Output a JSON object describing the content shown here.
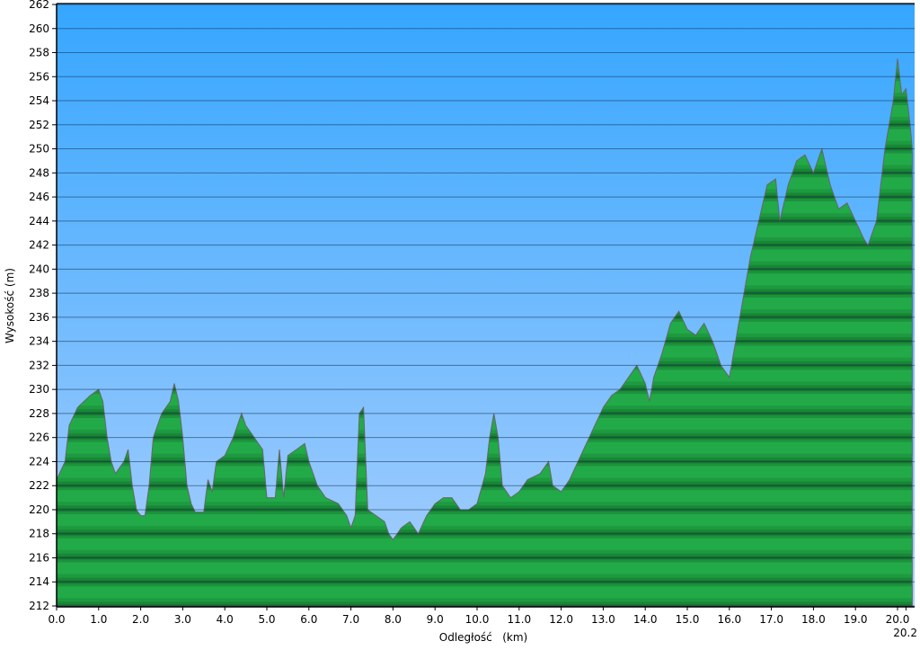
{
  "chart_data": {
    "type": "area",
    "title": "",
    "xlabel": "Odległość   (km)",
    "ylabel": "Wysokość (m)",
    "xlim": [
      0,
      20.35
    ],
    "ylim": [
      212,
      262
    ],
    "grid": true,
    "x_ticks": [
      "0.0",
      "1.0",
      "2.0",
      "3.0",
      "4.0",
      "5.0",
      "6.0",
      "7.0",
      "8.0",
      "9.0",
      "10.0",
      "11.0",
      "12.0",
      "13.0",
      "14.0",
      "15.0",
      "16.0",
      "17.0",
      "18.0",
      "19.0",
      "20.0",
      "20.2"
    ],
    "y_ticks": [
      212,
      214,
      216,
      218,
      220,
      222,
      224,
      226,
      228,
      230,
      232,
      234,
      236,
      238,
      240,
      242,
      244,
      246,
      248,
      250,
      252,
      254,
      256,
      258,
      260,
      262
    ],
    "colors": {
      "sky_top": "#36a6ff",
      "sky_bottom": "#a9cffd",
      "ground": "#22aa48",
      "ground_dark": "#14702c",
      "outline": "#555555"
    },
    "x": [
      0.0,
      0.2,
      0.3,
      0.5,
      0.8,
      1.0,
      1.1,
      1.2,
      1.3,
      1.4,
      1.6,
      1.7,
      1.8,
      1.9,
      2.0,
      2.1,
      2.2,
      2.3,
      2.5,
      2.7,
      2.8,
      2.9,
      3.0,
      3.1,
      3.2,
      3.3,
      3.5,
      3.6,
      3.7,
      3.8,
      4.0,
      4.2,
      4.4,
      4.5,
      4.7,
      4.9,
      5.0,
      5.2,
      5.3,
      5.4,
      5.5,
      5.7,
      5.9,
      6.0,
      6.2,
      6.4,
      6.7,
      6.9,
      7.0,
      7.1,
      7.2,
      7.3,
      7.4,
      7.6,
      7.8,
      7.9,
      8.0,
      8.2,
      8.4,
      8.6,
      8.8,
      9.0,
      9.2,
      9.4,
      9.6,
      9.8,
      10.0,
      10.2,
      10.3,
      10.4,
      10.5,
      10.6,
      10.8,
      11.0,
      11.2,
      11.5,
      11.7,
      11.8,
      12.0,
      12.2,
      12.4,
      12.6,
      12.8,
      13.0,
      13.2,
      13.4,
      13.6,
      13.8,
      14.0,
      14.1,
      14.2,
      14.4,
      14.6,
      14.8,
      15.0,
      15.2,
      15.4,
      15.6,
      15.8,
      16.0,
      16.1,
      16.3,
      16.5,
      16.7,
      16.9,
      17.1,
      17.2,
      17.4,
      17.6,
      17.8,
      18.0,
      18.2,
      18.4,
      18.6,
      18.8,
      19.0,
      19.2,
      19.3,
      19.5,
      19.7,
      19.9,
      20.0,
      20.1,
      20.2,
      20.3,
      20.35
    ],
    "y": [
      222.5,
      224,
      227,
      228.5,
      229.5,
      230,
      229,
      226,
      224,
      223,
      224,
      225,
      222,
      220,
      219.5,
      219.5,
      222,
      226,
      228,
      229,
      230.5,
      229,
      226,
      222,
      220.5,
      219.8,
      219.8,
      222.5,
      221.5,
      224,
      224.5,
      226,
      228,
      227,
      226,
      225,
      221,
      221,
      225,
      221,
      224.5,
      225,
      225.5,
      224,
      222,
      221,
      220.5,
      219.5,
      218.5,
      219.5,
      228,
      228.5,
      220,
      219.5,
      219,
      218,
      217.5,
      218.5,
      219,
      218,
      219.5,
      220.5,
      221,
      221,
      220,
      220,
      220.5,
      223,
      226,
      228,
      226,
      222,
      221,
      221.5,
      222.5,
      223,
      224,
      222,
      221.5,
      222.5,
      224,
      225.5,
      227,
      228.5,
      229.5,
      230,
      231,
      232,
      230.5,
      229,
      231,
      233,
      235.5,
      236.5,
      235,
      234.5,
      235.5,
      234,
      232,
      231,
      233,
      237,
      241,
      244,
      247,
      247.5,
      244,
      247,
      249,
      249.5,
      248,
      250,
      247,
      245,
      245.5,
      244,
      242.5,
      242,
      244,
      250,
      254,
      257.5,
      254.5,
      255,
      252,
      250
    ]
  }
}
